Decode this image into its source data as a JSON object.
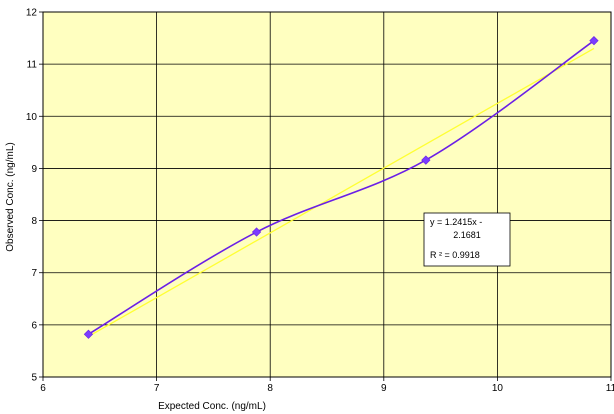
{
  "chart_data": {
    "type": "scatter",
    "title": "",
    "xlabel": "Expected Conc.  (ng/mL)",
    "ylabel": "Observed Conc.  (ng/mL)",
    "xlim": [
      6,
      11
    ],
    "ylim": [
      5,
      12
    ],
    "x_ticks": [
      "6",
      "7",
      "8",
      "9",
      "10",
      "11"
    ],
    "y_ticks": [
      "5",
      "6",
      "7",
      "8",
      "9",
      "10",
      "11",
      "12"
    ],
    "grid": true,
    "legend": "none",
    "series": [
      {
        "x": [
          6.4,
          7.88,
          9.37,
          10.85
        ],
        "y": [
          5.82,
          7.78,
          9.16,
          11.45
        ]
      }
    ],
    "trendline": {
      "type": "linear",
      "slope": 1.2415,
      "intercept": -2.1681,
      "x_range": [
        6.4,
        10.85
      ],
      "equation_lines": [
        "y = 1.2415x -",
        "2.1681",
        "R ² = 0.9918"
      ]
    },
    "colors": {
      "plot_background": "#FFFFC0",
      "series": "#6A1FE6",
      "marker": "#7B3CFF",
      "trendline": "#FFFF33",
      "grid": "#000000"
    }
  }
}
